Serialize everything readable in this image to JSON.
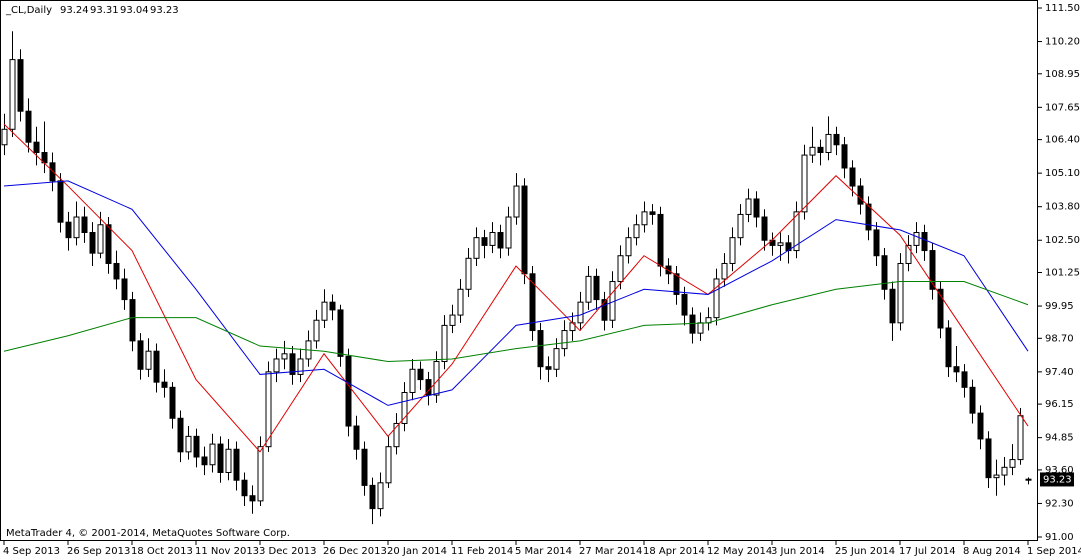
{
  "chart_data": {
    "type": "candlestick",
    "title": "_CL,Daily",
    "footer": "MetaTrader 4, © 2001-2014, MetaQuotes Software Corp.",
    "categories": [
      "4 Sep 2013",
      null,
      null,
      null,
      null,
      null,
      null,
      null,
      "26 Sep 2013",
      null,
      null,
      null,
      null,
      null,
      null,
      null,
      "18 Oct 2013",
      null,
      null,
      null,
      null,
      null,
      null,
      null,
      "11 Nov 2013",
      null,
      null,
      null,
      null,
      null,
      null,
      null,
      "3 Dec 2013",
      null,
      null,
      null,
      null,
      null,
      null,
      null,
      "26 Dec 2013",
      null,
      null,
      null,
      null,
      null,
      null,
      null,
      "20 Jan 2014",
      null,
      null,
      null,
      null,
      null,
      null,
      null,
      "11 Feb 2014",
      null,
      null,
      null,
      null,
      null,
      null,
      null,
      "5 Mar 2014",
      null,
      null,
      null,
      null,
      null,
      null,
      null,
      "27 Mar 2014",
      null,
      null,
      null,
      null,
      null,
      null,
      null,
      "18 Apr 2014",
      null,
      null,
      null,
      null,
      null,
      null,
      null,
      "12 May 2014",
      null,
      null,
      null,
      null,
      null,
      null,
      null,
      "3 Jun 2014",
      null,
      null,
      null,
      null,
      null,
      null,
      null,
      "25 Jun 2014",
      null,
      null,
      null,
      null,
      null,
      null,
      null,
      "17 Jul 2014",
      null,
      null,
      null,
      null,
      null,
      null,
      null,
      "8 Aug 2014",
      null,
      null,
      null,
      null,
      null,
      null,
      null,
      "1 Sep 2014"
    ],
    "open": [
      106.2,
      106.8,
      109.5,
      107.5,
      106.3,
      105.9,
      105.5,
      104.8,
      103.2,
      102.6,
      103.4,
      102.8,
      102.0,
      103.1,
      101.6,
      101.0,
      100.2,
      98.6,
      97.5,
      98.2,
      97.0,
      96.8,
      95.6,
      94.3,
      94.9,
      94.1,
      93.8,
      94.6,
      93.5,
      94.4,
      93.2,
      92.6,
      92.4,
      94.5,
      97.4,
      97.9,
      98.1,
      97.3,
      97.9,
      98.6,
      99.4,
      100.1,
      99.8,
      98.0,
      95.3,
      94.4,
      93.0,
      92.1,
      93.1,
      94.5,
      95.4,
      96.6,
      97.5,
      97.1,
      96.5,
      97.8,
      99.2,
      99.6,
      100.6,
      101.8,
      102.6,
      102.3,
      102.8,
      102.2,
      103.4,
      104.6,
      101.2,
      99.0,
      97.6,
      97.5,
      98.3,
      99.0,
      99.3,
      100.1,
      101.1,
      100.2,
      99.4,
      100.9,
      101.9,
      102.6,
      103.1,
      103.6,
      103.5,
      101.5,
      101.2,
      100.4,
      99.6,
      98.9,
      99.3,
      99.5,
      101.0,
      101.6,
      102.6,
      103.5,
      104.1,
      103.4,
      102.5,
      102.3,
      102.4,
      102.1,
      103.6,
      105.8,
      106.1,
      105.9,
      106.6,
      106.2,
      105.3,
      104.6,
      103.9,
      102.9,
      101.9,
      100.6,
      99.3,
      101.6,
      102.3,
      102.8,
      102.1,
      100.6,
      99.1,
      97.6,
      97.4,
      96.8,
      95.8,
      94.8,
      93.3,
      93.4,
      93.7,
      94.0,
      93.24
    ],
    "high": [
      107.4,
      110.6,
      109.9,
      108.0,
      106.9,
      107.1,
      105.9,
      105.1,
      103.6,
      104.0,
      103.8,
      103.2,
      103.6,
      103.4,
      102.1,
      101.4,
      100.5,
      98.9,
      98.7,
      98.5,
      97.5,
      97.0,
      95.9,
      95.3,
      95.2,
      94.5,
      95.0,
      94.9,
      94.8,
      94.7,
      93.5,
      93.0,
      94.9,
      97.8,
      98.3,
      98.6,
      98.4,
      98.3,
      99.0,
      99.8,
      100.6,
      100.4,
      100.0,
      98.3,
      95.7,
      94.7,
      93.3,
      93.5,
      94.9,
      95.8,
      97.0,
      97.9,
      97.8,
      97.4,
      98.2,
      99.6,
      100.0,
      101.0,
      102.2,
      103.0,
      102.9,
      103.2,
      103.1,
      103.8,
      105.1,
      104.9,
      101.5,
      99.3,
      98.0,
      98.7,
      99.4,
      99.7,
      100.5,
      101.5,
      101.4,
      100.5,
      101.3,
      102.3,
      103.0,
      103.5,
      104.0,
      103.9,
      103.8,
      101.8,
      101.5,
      100.7,
      99.9,
      99.7,
      99.9,
      101.4,
      102.0,
      103.0,
      103.9,
      104.5,
      104.4,
      103.7,
      102.8,
      102.8,
      102.7,
      104.0,
      106.2,
      106.9,
      106.4,
      107.3,
      106.9,
      106.5,
      105.6,
      104.9,
      104.2,
      103.2,
      102.2,
      100.9,
      102.0,
      102.7,
      103.2,
      103.1,
      102.4,
      100.9,
      99.4,
      98.4,
      97.7,
      97.1,
      96.1,
      95.1,
      94.0,
      94.1,
      94.6,
      96.0,
      93.31
    ],
    "low": [
      105.8,
      106.5,
      107.1,
      105.9,
      105.4,
      105.1,
      104.4,
      102.8,
      102.1,
      102.3,
      102.4,
      101.5,
      101.8,
      101.2,
      100.6,
      99.8,
      98.2,
      97.1,
      97.2,
      96.6,
      96.4,
      95.2,
      93.9,
      94.0,
      93.7,
      93.4,
      93.5,
      93.1,
      93.2,
      92.8,
      92.2,
      91.9,
      92.2,
      94.3,
      97.0,
      97.5,
      96.9,
      97.0,
      97.6,
      98.3,
      99.1,
      99.4,
      97.6,
      94.9,
      94.0,
      92.6,
      91.5,
      91.8,
      92.9,
      94.2,
      95.1,
      96.3,
      96.7,
      96.1,
      96.2,
      97.5,
      98.9,
      99.3,
      100.3,
      101.5,
      101.8,
      102.0,
      101.8,
      101.9,
      103.1,
      100.8,
      98.6,
      97.1,
      97.0,
      97.2,
      98.0,
      98.6,
      99.0,
      99.8,
      99.8,
      99.0,
      99.1,
      100.6,
      101.6,
      102.3,
      102.8,
      103.1,
      101.1,
      100.8,
      100.0,
      99.2,
      98.5,
      98.6,
      99.0,
      99.2,
      100.7,
      101.3,
      102.3,
      103.2,
      103.0,
      102.1,
      101.9,
      101.7,
      101.6,
      101.8,
      103.3,
      105.5,
      105.4,
      105.6,
      105.8,
      104.9,
      104.2,
      103.5,
      102.5,
      101.5,
      100.2,
      98.6,
      99.0,
      101.3,
      102.0,
      101.7,
      100.2,
      98.7,
      97.2,
      97.0,
      96.4,
      95.4,
      94.4,
      92.9,
      92.6,
      93.0,
      93.4,
      93.8,
      93.04
    ],
    "close": [
      106.8,
      109.5,
      107.5,
      106.3,
      105.9,
      105.5,
      104.8,
      103.2,
      102.6,
      103.4,
      102.8,
      102.0,
      103.1,
      101.6,
      101.0,
      100.2,
      98.6,
      97.5,
      98.2,
      97.0,
      96.8,
      95.6,
      94.3,
      94.9,
      94.1,
      93.8,
      94.6,
      93.5,
      94.4,
      93.2,
      92.6,
      92.4,
      94.5,
      97.4,
      97.9,
      98.1,
      97.3,
      97.9,
      98.6,
      99.4,
      100.1,
      99.8,
      98.0,
      95.3,
      94.4,
      93.0,
      92.1,
      93.1,
      94.5,
      95.4,
      96.6,
      97.5,
      97.1,
      96.5,
      97.8,
      99.2,
      99.6,
      100.6,
      101.8,
      102.6,
      102.3,
      102.8,
      102.2,
      103.4,
      104.6,
      101.2,
      99.0,
      97.6,
      97.5,
      98.3,
      99.0,
      99.3,
      100.1,
      101.1,
      100.2,
      99.4,
      100.9,
      101.9,
      102.6,
      103.1,
      103.6,
      103.5,
      101.5,
      101.2,
      100.4,
      99.6,
      98.9,
      99.3,
      99.5,
      101.0,
      101.6,
      102.6,
      103.5,
      104.1,
      103.4,
      102.5,
      102.3,
      102.4,
      102.1,
      103.6,
      105.8,
      106.1,
      105.9,
      106.6,
      106.2,
      105.3,
      104.6,
      103.9,
      102.9,
      101.9,
      100.6,
      99.3,
      101.6,
      102.3,
      102.8,
      102.1,
      100.6,
      99.1,
      97.6,
      97.4,
      96.8,
      95.8,
      94.8,
      93.3,
      93.4,
      93.7,
      94.0,
      95.7,
      93.23
    ],
    "series": [
      {
        "color": "#e00000",
        "x": [
          0,
          8,
          16,
          24,
          32,
          40,
          48,
          56,
          64,
          72,
          80,
          88,
          96,
          104,
          112,
          120,
          128
        ],
        "values": [
          107.0,
          104.6,
          102.1,
          97.1,
          94.3,
          98.1,
          94.9,
          97.7,
          101.5,
          99.0,
          101.9,
          100.4,
          102.5,
          105.0,
          102.7,
          99.0,
          95.3
        ]
      },
      {
        "color": "#0000e0",
        "x": [
          0,
          8,
          16,
          24,
          32,
          40,
          48,
          56,
          64,
          72,
          80,
          88,
          96,
          104,
          112,
          120,
          128
        ],
        "values": [
          104.6,
          104.8,
          103.7,
          100.6,
          97.3,
          97.5,
          96.1,
          96.7,
          99.2,
          99.6,
          100.6,
          100.4,
          101.7,
          103.3,
          102.9,
          101.9,
          98.2
        ]
      },
      {
        "color": "#008000",
        "x": [
          0,
          8,
          16,
          24,
          32,
          40,
          48,
          56,
          64,
          72,
          80,
          88,
          96,
          104,
          112,
          120,
          128
        ],
        "values": [
          98.2,
          98.8,
          99.5,
          99.5,
          98.4,
          98.2,
          97.8,
          97.9,
          98.3,
          98.6,
          99.2,
          99.3,
          100.0,
          100.6,
          100.9,
          100.9,
          100.0
        ]
      }
    ],
    "ylim": [
      91.0,
      111.5
    ],
    "yticks": [
      {
        "value": 91.0,
        "label": "91.00"
      },
      {
        "value": 92.3,
        "label": "92.30"
      },
      {
        "value": 93.6,
        "label": "93.60"
      },
      {
        "value": 94.85,
        "label": "94.85"
      },
      {
        "value": 96.15,
        "label": "96.15"
      },
      {
        "value": 97.4,
        "label": "97.40"
      },
      {
        "value": 98.7,
        "label": "98.70"
      },
      {
        "value": 99.95,
        "label": "99.95"
      },
      {
        "value": 101.25,
        "label": "101.25"
      },
      {
        "value": 102.5,
        "label": "102.50"
      },
      {
        "value": 103.8,
        "label": "103.80"
      },
      {
        "value": 105.1,
        "label": "105.10"
      },
      {
        "value": 106.4,
        "label": "106.40"
      },
      {
        "value": 107.65,
        "label": "107.65"
      },
      {
        "value": 108.95,
        "label": "108.95"
      },
      {
        "value": 110.2,
        "label": "110.20"
      },
      {
        "value": 111.5,
        "label": "111.50"
      }
    ]
  }
}
